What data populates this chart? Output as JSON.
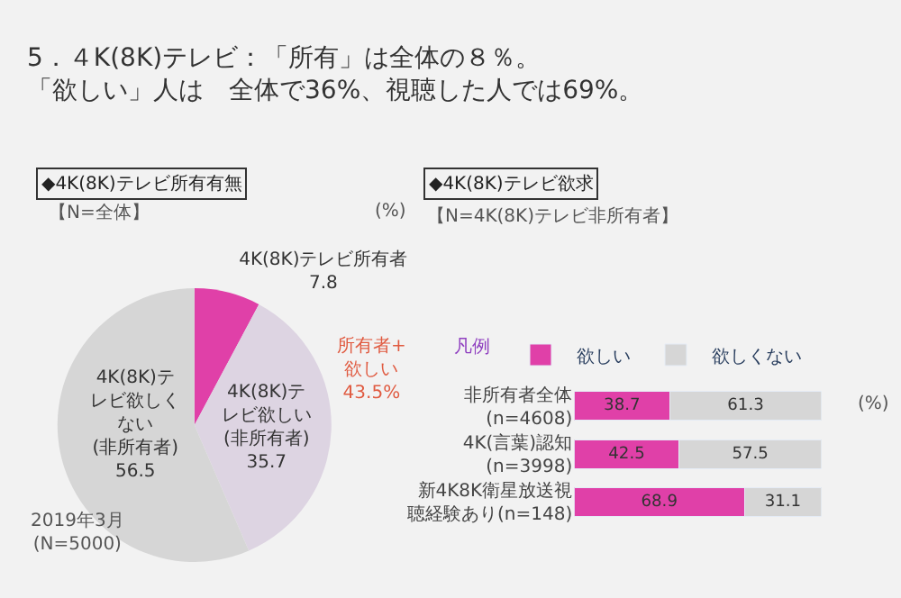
{
  "chart_data": [
    {
      "type": "pie",
      "title": "5．４K(8K)テレビ：「所有」は全体の８％。「欲しい」人は　全体で36%、視聴した人では69%。",
      "subtitle": "◆4K(8K)テレビ所有有無",
      "categories": [
        "4K(8K)テレビ所有者",
        "4K(8K)テレビ欲しい(非所有者)",
        "4K(8K)テレビ欲しくない(非所有者)"
      ],
      "values": [
        7.8,
        35.7,
        56.5
      ],
      "colors": [
        "#e040a8",
        "#ddd4e2",
        "#d6d6d6"
      ],
      "data_labels": true,
      "legend": false,
      "annotations": [
        "【N=全体】",
        "(%)",
        "所有者+欲しい43.5%",
        "2019年3月(N=5000)"
      ]
    },
    {
      "type": "bar",
      "orientation": "horizontal",
      "stacked": true,
      "title": "◆4K(8K)テレビ欲求",
      "categories": [
        "非所有者全体(n=4608)",
        "4K(言葉)認知(n=3998)",
        "新4K8K衛星放送視聴経験あり(n=148)"
      ],
      "series": [
        {
          "name": "欲しい",
          "color": "#e040a8",
          "values": [
            38.7,
            42.5,
            68.9
          ]
        },
        {
          "name": "欲しくない",
          "color": "#d6d6d6",
          "values": [
            61.3,
            57.5,
            31.1
          ]
        }
      ],
      "xlim": [
        0,
        100
      ],
      "tick_labels": "y",
      "data_labels": true,
      "legend": "top",
      "legend_title": "凡例",
      "annotations": [
        "【N=4K(8K)テレビ非所有者】",
        "(%)"
      ]
    }
  ]
}
